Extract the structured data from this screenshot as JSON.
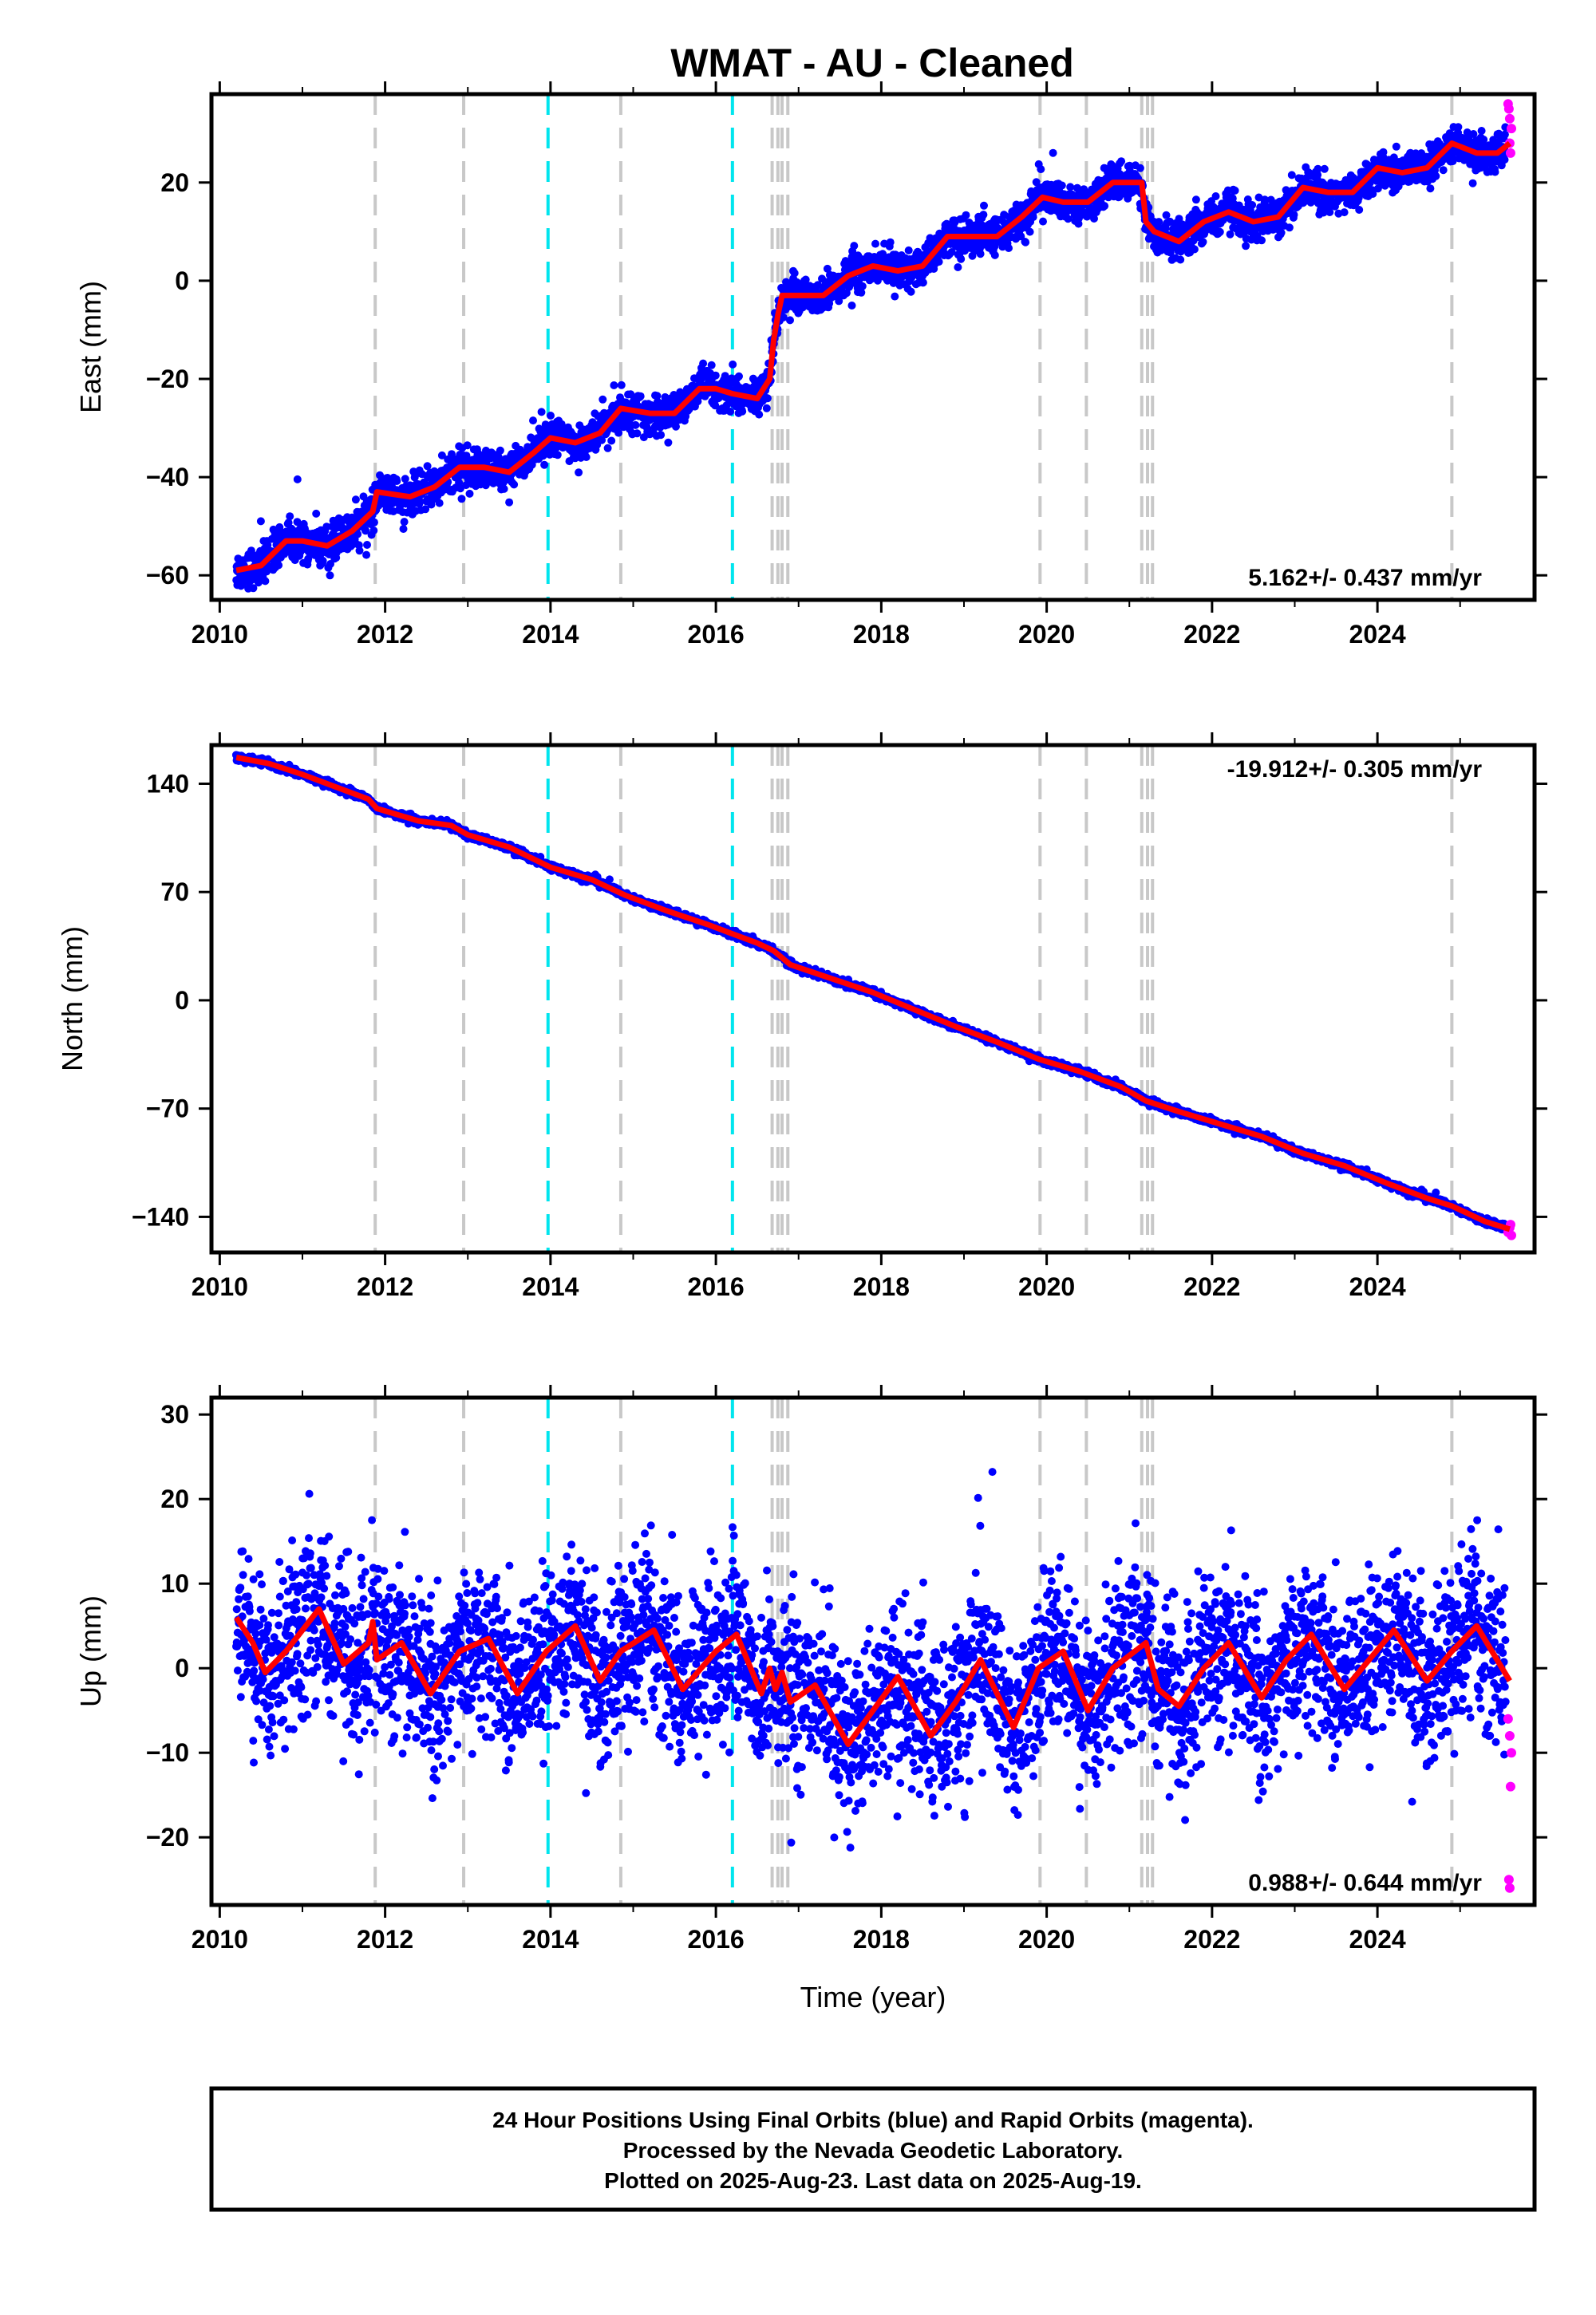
{
  "title": "WMAT  - AU - Cleaned",
  "colors": {
    "final_orbits": "#0000ff",
    "rapid_orbits": "#ff00ff",
    "fit": "#ff0000",
    "equipment_change": "#c8c8c8",
    "earthquake": "#00e5ee"
  },
  "footer": {
    "line1": "24 Hour Positions Using Final Orbits (blue) and Rapid Orbits (magenta).",
    "line2": "Processed by the Nevada Geodetic Laboratory.",
    "line3": "Plotted on 2025-Aug-23. Last data on 2025-Aug-19."
  },
  "chart_data": [
    {
      "type": "scatter",
      "ylabel": "East (mm)",
      "xlabel": "",
      "xlim": [
        2009.9,
        2025.9
      ],
      "ylim": [
        -65,
        38
      ],
      "xticks": [
        2010,
        2012,
        2014,
        2016,
        2018,
        2020,
        2022,
        2024
      ],
      "yticks": [
        -60,
        -40,
        -20,
        0,
        20
      ],
      "ytick_labels": [
        "−60",
        "−40",
        "−20",
        "0",
        "20"
      ],
      "rate": "5.162+/- 0.437 mm/yr",
      "rate_position": "bottom-right",
      "vlines_equipment": [
        2011.88,
        2012.95,
        2014.85,
        2016.68,
        2016.75,
        2016.8,
        2016.87,
        2019.92,
        2020.48,
        2021.15,
        2021.22,
        2021.28,
        2024.9
      ],
      "vlines_earthquake": [
        2013.97,
        2016.2
      ],
      "fit": {
        "x": [
          2010.2,
          2010.5,
          2010.8,
          2011.0,
          2011.3,
          2011.6,
          2011.85,
          2011.9,
          2012.3,
          2012.6,
          2012.9,
          2013.2,
          2013.5,
          2013.8,
          2014.0,
          2014.3,
          2014.6,
          2014.85,
          2015.2,
          2015.5,
          2015.8,
          2016.0,
          2016.2,
          2016.5,
          2016.65,
          2016.7,
          2016.75,
          2016.8,
          2016.9,
          2017.3,
          2017.6,
          2017.9,
          2018.2,
          2018.5,
          2018.8,
          2019.1,
          2019.4,
          2019.7,
          2019.95,
          2020.2,
          2020.5,
          2020.8,
          2021.1,
          2021.15,
          2021.2,
          2021.3,
          2021.6,
          2021.9,
          2022.2,
          2022.5,
          2022.8,
          2023.1,
          2023.4,
          2023.7,
          2024.0,
          2024.3,
          2024.6,
          2024.9,
          2025.2,
          2025.45,
          2025.6
        ],
        "y": [
          -59,
          -58,
          -53,
          -53,
          -54,
          -51,
          -47,
          -43,
          -44,
          -42,
          -38,
          -38,
          -39,
          -35,
          -32,
          -33,
          -31,
          -26,
          -27,
          -27,
          -22,
          -22,
          -23,
          -24,
          -20,
          -12,
          -7,
          -3,
          -3,
          -3,
          1,
          3,
          2,
          3,
          9,
          9,
          9,
          13,
          17,
          16,
          16,
          20,
          20,
          20,
          12,
          10,
          8,
          12,
          14,
          12,
          13,
          19,
          18,
          18,
          23,
          22,
          23,
          28,
          26,
          26,
          28
        ]
      },
      "scatter": {
        "start": 2010.2,
        "end": 2025.55,
        "count": 4000,
        "spread": 1.9
      },
      "rapid": {
        "x": [
          2025.58,
          2025.6,
          2025.62,
          2025.6,
          2025.61,
          2025.59
        ],
        "y": [
          36,
          33,
          31,
          28,
          26,
          35
        ]
      }
    },
    {
      "type": "scatter",
      "ylabel": "North (mm)",
      "xlabel": "",
      "xlim": [
        2009.9,
        2025.9
      ],
      "ylim": [
        -163,
        165
      ],
      "xticks": [
        2010,
        2012,
        2014,
        2016,
        2018,
        2020,
        2022,
        2024
      ],
      "yticks": [
        -140,
        -70,
        0,
        70,
        140
      ],
      "ytick_labels": [
        "−140",
        "−70",
        "0",
        "70",
        "140"
      ],
      "rate": "-19.912+/- 0.305 mm/yr",
      "rate_position": "top-right",
      "vlines_equipment": [
        2011.88,
        2012.95,
        2014.85,
        2016.68,
        2016.75,
        2016.8,
        2016.87,
        2019.92,
        2020.48,
        2021.15,
        2021.22,
        2021.28,
        2024.9
      ],
      "vlines_earthquake": [
        2013.97,
        2016.2
      ],
      "fit": {
        "x": [
          2010.2,
          2010.6,
          2011.0,
          2011.4,
          2011.8,
          2011.9,
          2012.4,
          2012.8,
          2013.0,
          2013.5,
          2014.0,
          2014.5,
          2014.9,
          2015.4,
          2015.9,
          2016.2,
          2016.5,
          2016.7,
          2016.9,
          2017.4,
          2017.9,
          2018.4,
          2018.9,
          2019.4,
          2019.9,
          2020.4,
          2020.9,
          2021.2,
          2021.6,
          2022.1,
          2022.6,
          2023.1,
          2023.6,
          2024.1,
          2024.6,
          2024.9,
          2025.3,
          2025.6
        ],
        "y": [
          157,
          153,
          146,
          138,
          130,
          124,
          116,
          113,
          107,
          99,
          86,
          78,
          68,
          58,
          49,
          43,
          37,
          32,
          23,
          14,
          5,
          -6,
          -17,
          -27,
          -38,
          -46,
          -56,
          -65,
          -72,
          -80,
          -88,
          -99,
          -107,
          -118,
          -128,
          -133,
          -143,
          -148
        ]
      },
      "scatter": {
        "start": 2010.2,
        "end": 2025.55,
        "count": 4000,
        "spread": 1.1
      },
      "rapid": {
        "x": [
          2025.58,
          2025.6,
          2025.62,
          2025.61
        ],
        "y": [
          -150,
          -147,
          -152,
          -145
        ]
      }
    },
    {
      "type": "scatter",
      "ylabel": "Up (mm)",
      "xlabel": "Time (year)",
      "xlim": [
        2009.9,
        2025.9
      ],
      "ylim": [
        -28,
        32
      ],
      "xticks": [
        2010,
        2012,
        2014,
        2016,
        2018,
        2020,
        2022,
        2024
      ],
      "yticks": [
        -20,
        -10,
        0,
        10,
        20,
        30
      ],
      "ytick_labels": [
        "−20",
        "−10",
        "0",
        "10",
        "20",
        "30"
      ],
      "rate": "0.988+/- 0.644 mm/yr",
      "rate_position": "bottom-right",
      "vlines_equipment": [
        2011.88,
        2012.95,
        2014.85,
        2016.68,
        2016.75,
        2016.8,
        2016.87,
        2019.92,
        2020.48,
        2021.15,
        2021.22,
        2021.28,
        2024.9
      ],
      "vlines_earthquake": [
        2013.97,
        2016.2
      ],
      "fit": {
        "x": [
          2010.2,
          2010.4,
          2010.55,
          2010.8,
          2011.2,
          2011.5,
          2011.8,
          2011.85,
          2011.9,
          2012.2,
          2012.55,
          2012.9,
          2013.25,
          2013.6,
          2013.95,
          2014.3,
          2014.6,
          2014.85,
          2015.25,
          2015.6,
          2016.0,
          2016.25,
          2016.55,
          2016.65,
          2016.72,
          2016.8,
          2016.9,
          2017.2,
          2017.6,
          2017.9,
          2018.2,
          2018.6,
          2018.9,
          2019.2,
          2019.6,
          2019.9,
          2020.2,
          2020.5,
          2020.8,
          2021.2,
          2021.35,
          2021.6,
          2021.9,
          2022.2,
          2022.6,
          2022.9,
          2023.2,
          2023.6,
          2023.9,
          2024.2,
          2024.6,
          2024.9,
          2025.2,
          2025.6
        ],
        "y": [
          6,
          3,
          -0.5,
          2,
          7,
          0.5,
          3,
          5.5,
          1,
          3,
          -3,
          2,
          3.5,
          -3,
          2,
          5,
          -1.5,
          2,
          4.5,
          -2.5,
          2,
          4,
          -3,
          0,
          -2.5,
          -0.5,
          -4,
          -2,
          -9,
          -5,
          -1,
          -8,
          -4,
          1,
          -7,
          0,
          2,
          -5,
          0,
          3,
          -2.5,
          -4.5,
          0,
          3,
          -3.5,
          1,
          4,
          -2.5,
          1,
          4.5,
          -1.5,
          2,
          5,
          -1.5
        ]
      },
      "scatter": {
        "start": 2010.2,
        "end": 2025.55,
        "count": 4000,
        "spread": 5.0
      },
      "rapid": {
        "x": [
          2025.58,
          2025.6,
          2025.62,
          2025.61,
          2025.59,
          2025.6
        ],
        "y": [
          -6,
          -8,
          -10,
          -14,
          -25,
          -26
        ]
      }
    }
  ]
}
